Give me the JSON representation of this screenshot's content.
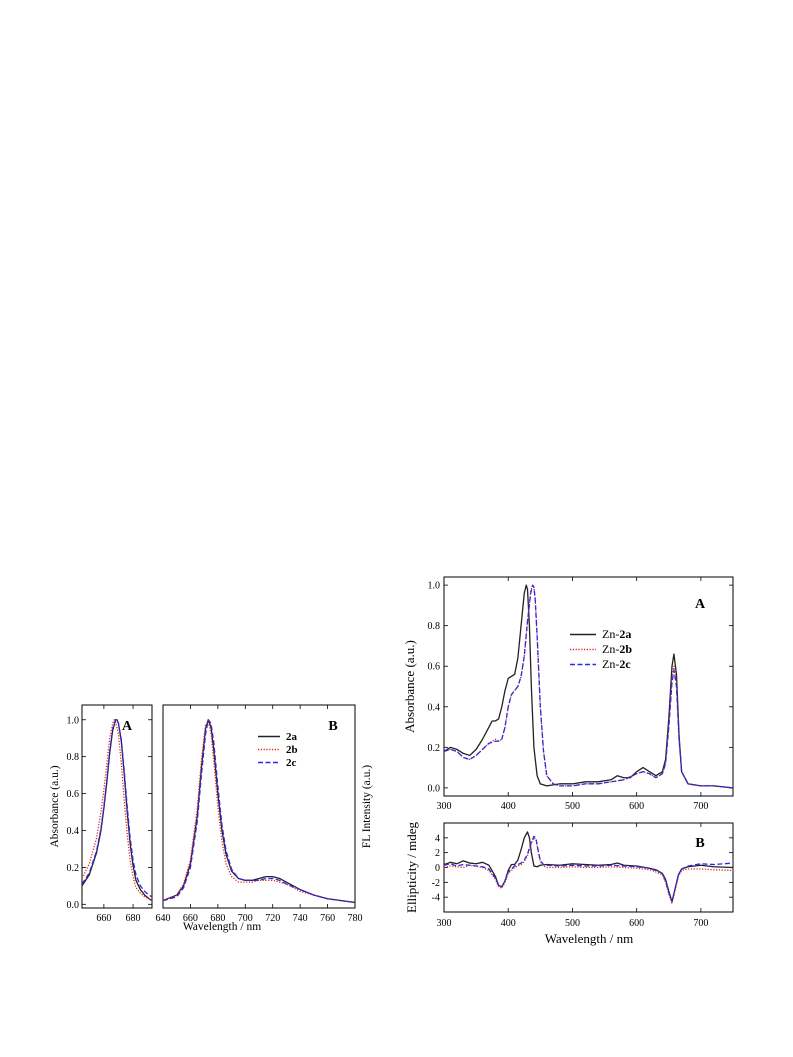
{
  "colors": {
    "black": "#222222",
    "red": "#e0241b",
    "blue": "#2a2ae6"
  },
  "chart_data": [
    {
      "type": "line",
      "panel": "A",
      "title": "",
      "xlabel": "",
      "ylabel": "Absorbance (a.u.)",
      "xlim": [
        645,
        693
      ],
      "ylim": [
        -0.02,
        1.08
      ],
      "xticks": [
        660,
        680
      ],
      "yticks": [
        0.0,
        0.2,
        0.4,
        0.6,
        0.8,
        1.0
      ],
      "ytick_labels": [
        "0.0",
        "0.2",
        "0.4",
        "0.6",
        "0.8",
        "1.0"
      ],
      "series": [
        {
          "name": "",
          "style": "solid",
          "color": "#222222",
          "x": [
            645,
            650,
            655,
            658,
            660,
            662,
            664,
            666,
            668,
            669,
            670,
            672,
            674,
            676,
            678,
            680,
            682,
            685,
            688,
            691,
            693
          ],
          "y": [
            0.1,
            0.16,
            0.28,
            0.4,
            0.52,
            0.66,
            0.82,
            0.94,
            1.0,
            1.0,
            0.98,
            0.88,
            0.7,
            0.5,
            0.33,
            0.21,
            0.13,
            0.08,
            0.05,
            0.03,
            0.02
          ]
        },
        {
          "name": "",
          "style": "dotted",
          "color": "#e0241b",
          "x": [
            645,
            650,
            655,
            658,
            660,
            662,
            664,
            666,
            667,
            668,
            670,
            672,
            674,
            676,
            678,
            680,
            682,
            685,
            688,
            691,
            693
          ],
          "y": [
            0.14,
            0.22,
            0.36,
            0.5,
            0.62,
            0.76,
            0.9,
            0.98,
            1.0,
            0.99,
            0.92,
            0.76,
            0.56,
            0.38,
            0.24,
            0.15,
            0.09,
            0.06,
            0.04,
            0.03,
            0.02
          ]
        },
        {
          "name": "",
          "style": "dashed",
          "color": "#2a2ae6",
          "x": [
            645,
            650,
            655,
            658,
            660,
            662,
            664,
            666,
            668,
            669,
            670,
            672,
            674,
            676,
            678,
            680,
            682,
            685,
            688,
            691,
            693
          ],
          "y": [
            0.11,
            0.17,
            0.29,
            0.41,
            0.53,
            0.67,
            0.83,
            0.95,
            1.0,
            1.0,
            0.98,
            0.89,
            0.72,
            0.53,
            0.36,
            0.24,
            0.16,
            0.1,
            0.07,
            0.05,
            0.04
          ]
        }
      ]
    },
    {
      "type": "line",
      "panel": "B",
      "title": "",
      "xlabel": "Wavelength / nm",
      "ylabel": "FL Intensity (a.u.)",
      "xlim": [
        640,
        780
      ],
      "ylim": [
        -0.02,
        1.08
      ],
      "xticks": [
        640,
        660,
        680,
        700,
        720,
        740,
        760,
        780
      ],
      "legend": [
        {
          "label": "2a",
          "style": "solid",
          "color": "#222222"
        },
        {
          "label": "2b",
          "style": "dotted",
          "color": "#e0241b"
        },
        {
          "label": "2c",
          "style": "dashed",
          "color": "#2a2ae6"
        }
      ],
      "series": [
        {
          "name": "2a",
          "style": "solid",
          "color": "#222222",
          "x": [
            640,
            650,
            655,
            660,
            665,
            668,
            671,
            673,
            675,
            677,
            680,
            683,
            686,
            690,
            695,
            700,
            705,
            710,
            715,
            720,
            725,
            730,
            740,
            750,
            760,
            770,
            780
          ],
          "y": [
            0.02,
            0.05,
            0.1,
            0.22,
            0.48,
            0.74,
            0.95,
            1.0,
            0.96,
            0.84,
            0.6,
            0.4,
            0.27,
            0.18,
            0.14,
            0.13,
            0.13,
            0.14,
            0.15,
            0.15,
            0.14,
            0.12,
            0.08,
            0.05,
            0.03,
            0.02,
            0.01
          ]
        },
        {
          "name": "2b",
          "style": "dotted",
          "color": "#e0241b",
          "x": [
            640,
            650,
            655,
            660,
            665,
            668,
            671,
            673,
            675,
            677,
            680,
            683,
            686,
            690,
            695,
            700,
            705,
            710,
            715,
            720,
            725,
            730,
            740,
            750,
            760,
            770,
            780
          ],
          "y": [
            0.02,
            0.05,
            0.11,
            0.24,
            0.52,
            0.78,
            0.97,
            0.99,
            0.93,
            0.78,
            0.53,
            0.34,
            0.22,
            0.15,
            0.12,
            0.12,
            0.12,
            0.13,
            0.13,
            0.13,
            0.12,
            0.11,
            0.07,
            0.05,
            0.03,
            0.02,
            0.01
          ]
        },
        {
          "name": "2c",
          "style": "dashed",
          "color": "#2a2ae6",
          "x": [
            640,
            650,
            655,
            660,
            665,
            668,
            671,
            673,
            675,
            677,
            680,
            683,
            686,
            690,
            695,
            700,
            705,
            710,
            715,
            720,
            725,
            730,
            740,
            750,
            760,
            770,
            780
          ],
          "y": [
            0.02,
            0.04,
            0.09,
            0.2,
            0.45,
            0.7,
            0.92,
            1.0,
            0.98,
            0.88,
            0.64,
            0.43,
            0.29,
            0.19,
            0.14,
            0.13,
            0.13,
            0.13,
            0.14,
            0.14,
            0.13,
            0.11,
            0.08,
            0.05,
            0.03,
            0.02,
            0.01
          ]
        }
      ]
    },
    {
      "type": "line",
      "panel": "A",
      "title": "",
      "xlabel": "",
      "ylabel": "Absorbance (a.u.)",
      "xlim": [
        300,
        750
      ],
      "ylim": [
        -0.04,
        1.04
      ],
      "xticks": [
        300,
        400,
        500,
        600,
        700
      ],
      "yticks": [
        0.0,
        0.2,
        0.4,
        0.6,
        0.8,
        1.0
      ],
      "ytick_labels": [
        "0.0",
        "0.2",
        "0.4",
        "0.6",
        "0.8",
        "1.0"
      ],
      "legend": [
        {
          "prefix": "Zn-",
          "label": "2a",
          "style": "solid",
          "color": "#222222"
        },
        {
          "prefix": "Zn-",
          "label": "2b",
          "style": "dotted",
          "color": "#e0241b"
        },
        {
          "prefix": "Zn-",
          "label": "2c",
          "style": "dashed",
          "color": "#2a2ae6"
        }
      ],
      "series": [
        {
          "name": "Zn-2a",
          "style": "solid",
          "color": "#222222",
          "x": [
            300,
            310,
            320,
            330,
            340,
            350,
            360,
            370,
            375,
            380,
            385,
            390,
            395,
            400,
            405,
            410,
            415,
            420,
            425,
            428,
            430,
            433,
            436,
            440,
            445,
            450,
            460,
            480,
            500,
            520,
            540,
            560,
            570,
            580,
            590,
            600,
            610,
            620,
            630,
            640,
            645,
            650,
            655,
            658,
            662,
            666,
            670,
            680,
            700,
            720,
            750
          ],
          "y": [
            0.18,
            0.2,
            0.19,
            0.17,
            0.16,
            0.19,
            0.24,
            0.3,
            0.33,
            0.33,
            0.34,
            0.4,
            0.48,
            0.54,
            0.55,
            0.56,
            0.64,
            0.8,
            0.96,
            1.0,
            0.98,
            0.8,
            0.5,
            0.2,
            0.06,
            0.02,
            0.01,
            0.02,
            0.02,
            0.03,
            0.03,
            0.04,
            0.06,
            0.05,
            0.05,
            0.08,
            0.1,
            0.08,
            0.06,
            0.08,
            0.14,
            0.34,
            0.6,
            0.66,
            0.56,
            0.26,
            0.08,
            0.02,
            0.01,
            0.01,
            0.0
          ]
        },
        {
          "name": "Zn-2b",
          "style": "dotted",
          "color": "#e0241b",
          "x": [
            300,
            310,
            320,
            330,
            340,
            350,
            360,
            370,
            380,
            385,
            390,
            395,
            400,
            405,
            410,
            415,
            420,
            425,
            430,
            435,
            438,
            440,
            442,
            445,
            450,
            455,
            460,
            470,
            480,
            500,
            520,
            540,
            560,
            580,
            600,
            610,
            620,
            630,
            640,
            645,
            650,
            655,
            658,
            662,
            666,
            670,
            680,
            700,
            720,
            750
          ],
          "y": [
            0.18,
            0.19,
            0.18,
            0.15,
            0.14,
            0.16,
            0.19,
            0.22,
            0.24,
            0.23,
            0.24,
            0.3,
            0.4,
            0.46,
            0.48,
            0.5,
            0.55,
            0.65,
            0.82,
            0.97,
            1.0,
            0.99,
            0.93,
            0.75,
            0.4,
            0.18,
            0.06,
            0.02,
            0.01,
            0.01,
            0.02,
            0.02,
            0.03,
            0.04,
            0.07,
            0.08,
            0.07,
            0.05,
            0.07,
            0.12,
            0.3,
            0.54,
            0.6,
            0.52,
            0.24,
            0.08,
            0.02,
            0.01,
            0.01,
            0.0
          ]
        },
        {
          "name": "Zn-2c",
          "style": "dashed",
          "color": "#2a2ae6",
          "x": [
            300,
            310,
            320,
            330,
            340,
            350,
            360,
            370,
            380,
            385,
            390,
            395,
            400,
            405,
            410,
            415,
            420,
            425,
            430,
            435,
            438,
            440,
            442,
            445,
            450,
            455,
            460,
            470,
            480,
            500,
            520,
            540,
            560,
            580,
            600,
            610,
            620,
            630,
            640,
            645,
            650,
            655,
            658,
            662,
            666,
            670,
            680,
            700,
            720,
            750
          ],
          "y": [
            0.18,
            0.19,
            0.18,
            0.15,
            0.14,
            0.16,
            0.19,
            0.22,
            0.23,
            0.23,
            0.24,
            0.3,
            0.4,
            0.46,
            0.48,
            0.5,
            0.55,
            0.65,
            0.82,
            0.96,
            1.0,
            0.99,
            0.93,
            0.75,
            0.4,
            0.18,
            0.06,
            0.02,
            0.01,
            0.01,
            0.02,
            0.02,
            0.03,
            0.04,
            0.07,
            0.08,
            0.07,
            0.05,
            0.07,
            0.12,
            0.3,
            0.52,
            0.58,
            0.5,
            0.24,
            0.08,
            0.02,
            0.01,
            0.01,
            0.0
          ]
        }
      ]
    },
    {
      "type": "line",
      "panel": "B",
      "title": "",
      "xlabel": "Wavelength / nm",
      "ylabel": "Ellipticity / mdeg",
      "xlim": [
        300,
        750
      ],
      "ylim": [
        -6,
        6
      ],
      "xticks": [
        300,
        400,
        500,
        600,
        700
      ],
      "yticks": [
        -4,
        -2,
        0,
        2,
        4
      ],
      "series": [
        {
          "name": "Zn-2a",
          "style": "solid",
          "color": "#222222",
          "x": [
            300,
            310,
            320,
            330,
            340,
            350,
            360,
            370,
            380,
            385,
            390,
            395,
            400,
            405,
            410,
            415,
            420,
            425,
            430,
            433,
            436,
            440,
            445,
            450,
            460,
            480,
            500,
            520,
            540,
            560,
            570,
            580,
            600,
            620,
            630,
            640,
            645,
            650,
            655,
            660,
            665,
            670,
            680,
            700,
            720,
            750
          ],
          "y": [
            0.4,
            0.7,
            0.5,
            0.9,
            0.6,
            0.5,
            0.7,
            0.3,
            -1.2,
            -2.4,
            -2.6,
            -1.8,
            -0.4,
            0.4,
            0.4,
            1.0,
            2.4,
            4.0,
            4.8,
            4.0,
            2.0,
            0.2,
            0.1,
            0.3,
            0.4,
            0.3,
            0.5,
            0.4,
            0.3,
            0.4,
            0.6,
            0.3,
            0.2,
            -0.1,
            -0.3,
            -0.8,
            -1.6,
            -3.2,
            -4.6,
            -2.8,
            -1.0,
            -0.2,
            0.1,
            0.3,
            0.1,
            0.0
          ]
        },
        {
          "name": "Zn-2b",
          "style": "dotted",
          "color": "#e0241b",
          "x": [
            300,
            310,
            320,
            330,
            340,
            350,
            360,
            370,
            380,
            385,
            390,
            395,
            400,
            410,
            420,
            425,
            430,
            435,
            440,
            443,
            446,
            450,
            455,
            460,
            480,
            500,
            520,
            540,
            560,
            580,
            600,
            620,
            630,
            640,
            645,
            650,
            655,
            660,
            665,
            670,
            680,
            700,
            720,
            750
          ],
          "y": [
            0.0,
            0.2,
            0.1,
            0.0,
            0.3,
            0.2,
            0.0,
            -0.4,
            -1.6,
            -2.6,
            -2.8,
            -2.0,
            -0.8,
            0.0,
            0.4,
            0.8,
            1.6,
            3.0,
            4.0,
            3.8,
            2.4,
            0.8,
            0.2,
            0.0,
            0.0,
            0.1,
            0.0,
            0.0,
            0.1,
            0.0,
            -0.1,
            -0.3,
            -0.6,
            -1.0,
            -2.0,
            -3.6,
            -4.8,
            -3.0,
            -1.2,
            -0.4,
            -0.2,
            -0.2,
            -0.3,
            -0.4
          ]
        },
        {
          "name": "Zn-2c",
          "style": "dashed",
          "color": "#2a2ae6",
          "x": [
            300,
            310,
            320,
            330,
            340,
            350,
            360,
            370,
            380,
            385,
            390,
            395,
            400,
            410,
            420,
            425,
            430,
            435,
            440,
            443,
            446,
            450,
            455,
            460,
            480,
            500,
            520,
            540,
            560,
            580,
            600,
            620,
            630,
            640,
            645,
            650,
            655,
            660,
            665,
            670,
            680,
            700,
            720,
            750
          ],
          "y": [
            0.3,
            0.5,
            0.2,
            0.4,
            0.3,
            0.2,
            0.1,
            -0.2,
            -1.4,
            -2.4,
            -2.6,
            -1.8,
            -0.6,
            0.2,
            0.6,
            1.0,
            1.8,
            3.2,
            4.2,
            4.0,
            2.6,
            0.9,
            0.4,
            0.3,
            0.2,
            0.3,
            0.2,
            0.2,
            0.3,
            0.2,
            0.1,
            -0.1,
            -0.4,
            -0.8,
            -1.8,
            -3.4,
            -4.6,
            -2.8,
            -1.0,
            -0.2,
            0.2,
            0.5,
            0.4,
            0.6
          ]
        }
      ]
    }
  ]
}
